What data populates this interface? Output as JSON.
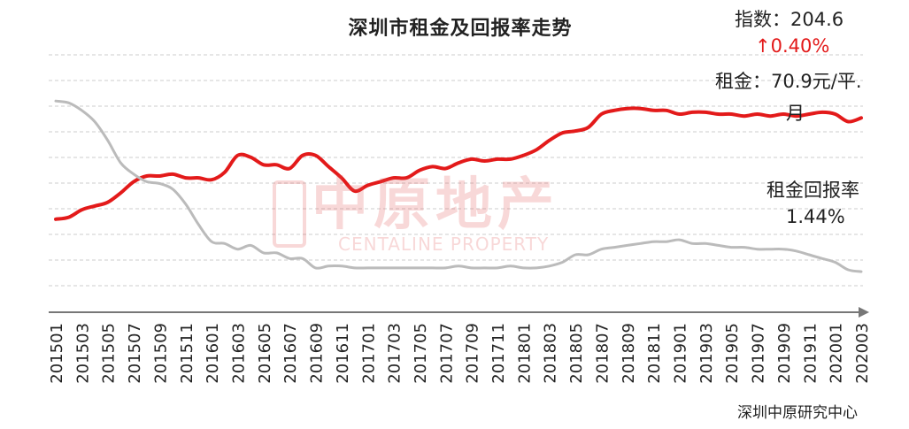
{
  "title": "深圳市租金及回报率走势",
  "annotations": {
    "index": "指数：204.6",
    "change": "↑0.40%",
    "rent_line1": "租金：70.9元/平.",
    "rent_line2": "月",
    "yield_label": "租金回报率",
    "yield_value": "1.44%"
  },
  "source": "深圳中原研究中心",
  "watermark": {
    "cn": "中原地产",
    "en": "CENTALINE PROPERTY"
  },
  "colors": {
    "rent": "#e31a1a",
    "yield": "#bbbbbb",
    "grid": "#cccccc",
    "axis": "#777777"
  },
  "chart_data": {
    "type": "line",
    "grid": true,
    "x": [
      "201501",
      "201502",
      "201503",
      "201504",
      "201505",
      "201506",
      "201507",
      "201508",
      "201509",
      "201510",
      "201511",
      "201512",
      "201601",
      "201602",
      "201603",
      "201604",
      "201605",
      "201606",
      "201607",
      "201608",
      "201609",
      "201610",
      "201611",
      "201612",
      "201701",
      "201702",
      "201703",
      "201704",
      "201705",
      "201706",
      "201707",
      "201708",
      "201709",
      "201710",
      "201711",
      "201712",
      "201801",
      "201802",
      "201803",
      "201804",
      "201805",
      "201806",
      "201807",
      "201808",
      "201809",
      "201810",
      "201811",
      "201812",
      "201901",
      "201902",
      "201903",
      "201904",
      "201905",
      "201906",
      "201907",
      "201908",
      "201909",
      "201910",
      "201911",
      "201912",
      "202001",
      "202002",
      "202003"
    ],
    "tick_labels": [
      "201501",
      "201503",
      "201505",
      "201507",
      "201509",
      "201511",
      "201601",
      "201603",
      "201605",
      "201607",
      "201609",
      "201611",
      "201701",
      "201703",
      "201705",
      "201707",
      "201709",
      "201711",
      "201801",
      "201803",
      "201805",
      "201807",
      "201809",
      "201811",
      "201901",
      "201903",
      "201905",
      "201907",
      "201909",
      "201911",
      "202001",
      "202003"
    ],
    "ylim": [
      0,
      100
    ],
    "series": [
      {
        "name": "租金",
        "values": [
          27,
          28,
          32,
          34,
          36,
          41,
          47,
          50,
          50,
          51,
          49,
          49,
          48,
          52,
          61,
          60,
          56,
          56,
          54,
          61,
          61,
          55,
          49,
          42,
          45,
          47,
          49,
          49,
          53,
          55,
          54,
          57,
          59,
          58,
          59,
          59,
          61,
          64,
          69,
          73,
          74,
          76,
          83,
          85,
          86,
          86,
          85,
          85,
          83,
          84,
          84,
          83,
          83,
          82,
          83,
          82,
          83,
          82,
          83,
          84,
          83,
          79,
          81
        ]
      },
      {
        "name": "租金回报率",
        "values": [
          90,
          89,
          85,
          79,
          69,
          57,
          51,
          47,
          46,
          43,
          35,
          24,
          15,
          14,
          11,
          13,
          9,
          9,
          6,
          6,
          1,
          2,
          2,
          1,
          1,
          1,
          1,
          1,
          1,
          1,
          1,
          2,
          1,
          1,
          1,
          2,
          1,
          1,
          2,
          4,
          8,
          8,
          11,
          12,
          13,
          14,
          15,
          15,
          16,
          14,
          14,
          13,
          12,
          12,
          11,
          11,
          11,
          10,
          8,
          6,
          4,
          0,
          -1
        ]
      }
    ]
  }
}
